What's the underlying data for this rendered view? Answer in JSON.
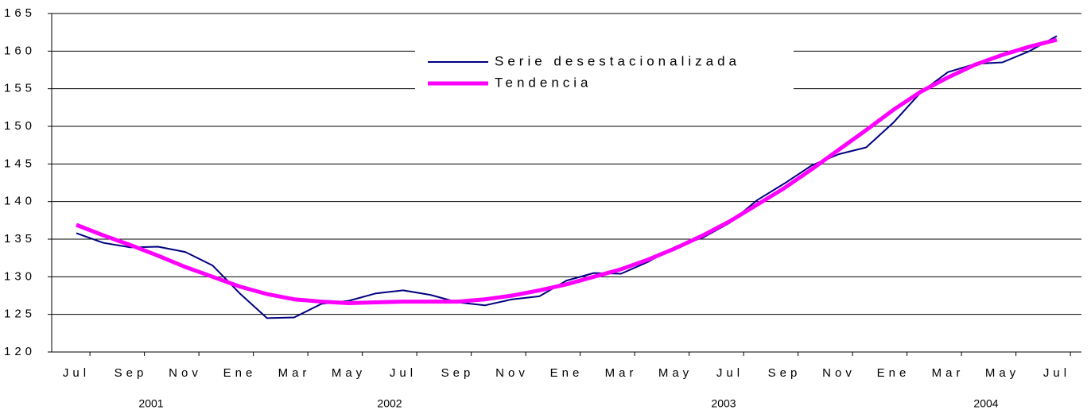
{
  "chart_data": {
    "type": "line",
    "categories": [
      "Jul",
      null,
      "Sep",
      null,
      "Nov",
      null,
      "Ene",
      null,
      "Mar",
      null,
      "May",
      null,
      "Jul",
      null,
      "Sep",
      null,
      "Nov",
      null,
      "Ene",
      null,
      "Mar",
      null,
      "May",
      null,
      "Jul",
      null,
      "Sep",
      null,
      "Nov",
      null,
      "Ene",
      null,
      "Mar",
      null,
      "May",
      null,
      "Jul"
    ],
    "year_labels": [
      "2001",
      "2002",
      "2003",
      "2004"
    ],
    "series": [
      {
        "name": "Serie desestacionalizada",
        "color": "#000080",
        "values": [
          135.8,
          134.5,
          133.9,
          134.0,
          133.3,
          131.5,
          127.8,
          124.5,
          124.6,
          126.4,
          126.8,
          127.8,
          128.2,
          127.6,
          126.6,
          126.2,
          127.0,
          127.4,
          129.5,
          130.5,
          130.4,
          132.0,
          134.0,
          135.2,
          137.2,
          140.2,
          142.4,
          144.8,
          146.3,
          147.2,
          150.5,
          154.5,
          157.2,
          158.3,
          158.5,
          160.0,
          162.0
        ]
      },
      {
        "name": "Tendencia",
        "color": "#ff00ff",
        "values": [
          136.9,
          135.5,
          134.2,
          132.8,
          131.3,
          130.0,
          128.7,
          127.7,
          127.0,
          126.7,
          126.5,
          126.6,
          126.7,
          126.7,
          126.7,
          127.0,
          127.5,
          128.2,
          129.0,
          130.0,
          131.0,
          132.3,
          133.8,
          135.5,
          137.4,
          139.6,
          141.8,
          144.3,
          146.9,
          149.5,
          152.2,
          154.6,
          156.5,
          158.2,
          159.5,
          160.6,
          161.5
        ]
      }
    ],
    "ylim": [
      120,
      165
    ],
    "yticks": [
      120,
      125,
      130,
      135,
      140,
      145,
      150,
      155,
      160,
      165
    ],
    "grid": true
  }
}
